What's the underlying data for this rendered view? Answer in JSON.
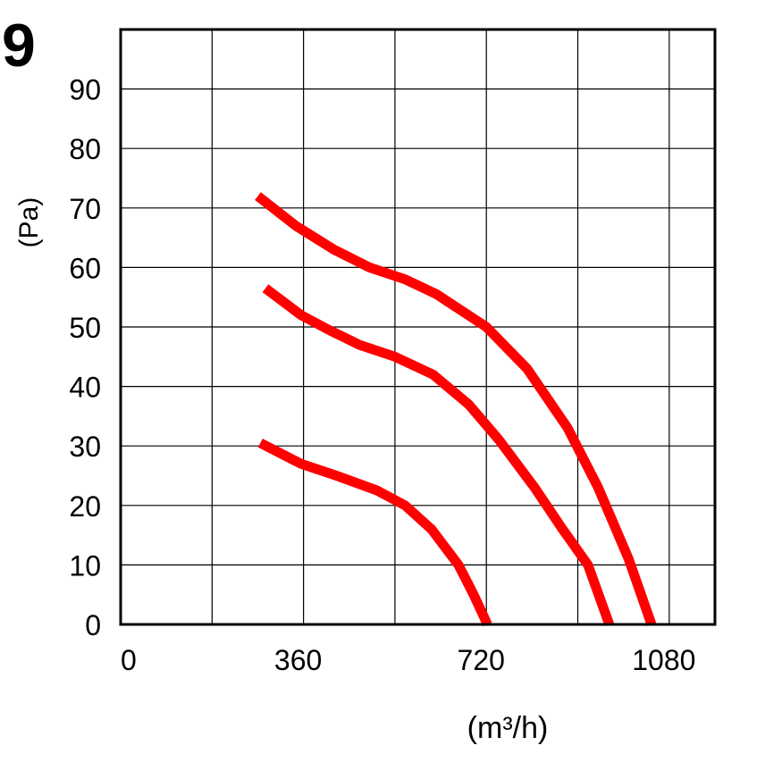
{
  "chart_data": {
    "type": "line",
    "title": "9",
    "xlabel": "(m³/h)",
    "ylabel": "(Pa)",
    "xlim": [
      0,
      1170
    ],
    "ylim": [
      0,
      100
    ],
    "x_ticks": [
      0,
      360,
      720,
      1080
    ],
    "x_tick_labels": [
      "0",
      "360",
      "720",
      "1080"
    ],
    "y_ticks": [
      0,
      10,
      20,
      30,
      40,
      50,
      60,
      70,
      80,
      90
    ],
    "y_tick_labels": [
      "0",
      "10",
      "20",
      "30",
      "40",
      "50",
      "60",
      "70",
      "80",
      "90"
    ],
    "x_grid_lines": [
      0,
      180,
      360,
      540,
      720,
      900,
      1080,
      1170
    ],
    "y_grid_lines": [
      0,
      10,
      20,
      30,
      40,
      50,
      60,
      70,
      80,
      90,
      100
    ],
    "grid": true,
    "line_color": "#ff0000",
    "series": [
      {
        "x": [
          270,
          345,
          420,
          490,
          560,
          622,
          720,
          800,
          880,
          940,
          1000,
          1045
        ],
        "y": [
          72,
          67,
          63,
          60,
          58,
          55.5,
          50,
          43,
          33,
          23,
          11,
          0
        ]
      },
      {
        "x": [
          285,
          355,
          410,
          470,
          540,
          615,
          685,
          745,
          815,
          870,
          920,
          962
        ],
        "y": [
          56.5,
          52,
          49.5,
          47,
          45,
          42,
          37,
          31,
          23,
          16,
          10,
          0
        ]
      },
      {
        "x": [
          275,
          355,
          425,
          505,
          560,
          612,
          665,
          695,
          722
        ],
        "y": [
          30.5,
          27,
          25,
          22.5,
          20,
          16,
          10,
          5,
          0
        ]
      }
    ]
  }
}
